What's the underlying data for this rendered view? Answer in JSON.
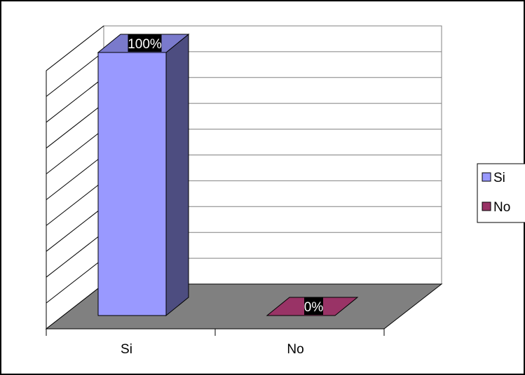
{
  "chart_data": {
    "type": "bar",
    "three_d": true,
    "categories": [
      "Si",
      "No"
    ],
    "values": [
      100,
      0
    ],
    "data_labels": [
      "100%",
      "0%"
    ],
    "colors": [
      "#9999ff",
      "#993366"
    ],
    "ylim": [
      0,
      100
    ],
    "grid": true,
    "legend": {
      "position": "right",
      "entries": [
        "Si",
        "No"
      ]
    },
    "title": "",
    "xlabel": "",
    "ylabel": ""
  }
}
